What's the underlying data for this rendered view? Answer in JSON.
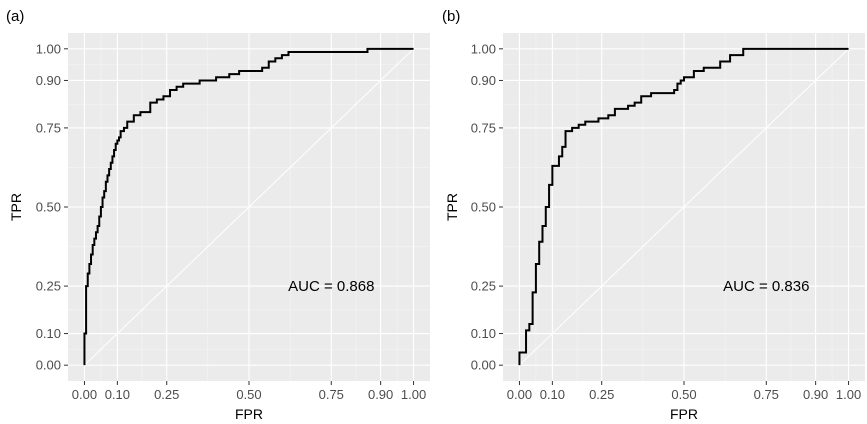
{
  "colors": {
    "panel_bg": "#EBEBEB",
    "grid_major": "#FFFFFF",
    "grid_minor": "#F5F5F5",
    "curve": "#000000",
    "diagonal": "#FFFFFF"
  },
  "chart_data": [
    {
      "type": "line",
      "panel_label": "(a)",
      "xlabel": "FPR",
      "ylabel": "TPR",
      "xlim": [
        0,
        1
      ],
      "ylim": [
        0,
        1
      ],
      "x_ticks": [
        0.0,
        0.1,
        0.25,
        0.5,
        0.75,
        0.9,
        1.0
      ],
      "x_tick_labels": [
        "0.00",
        "0.10",
        "0.25",
        "0.50",
        "0.75",
        "0.90",
        "1.00"
      ],
      "y_ticks": [
        0.0,
        0.1,
        0.25,
        0.5,
        0.75,
        0.9,
        1.0
      ],
      "y_tick_labels": [
        "0.00",
        "0.10",
        "0.25",
        "0.50",
        "0.75",
        "0.90",
        "1.00"
      ],
      "annotation": "AUC = 0.868",
      "grid": true,
      "diagonal_reference": true,
      "series": [
        {
          "x": [
            0.0,
            0.0,
            0.005,
            0.005,
            0.01,
            0.01,
            0.015,
            0.015,
            0.02,
            0.02,
            0.025,
            0.025,
            0.03,
            0.03,
            0.035,
            0.035,
            0.04,
            0.04,
            0.045,
            0.045,
            0.05,
            0.05,
            0.055,
            0.055,
            0.06,
            0.06,
            0.065,
            0.065,
            0.07,
            0.07,
            0.075,
            0.075,
            0.08,
            0.08,
            0.085,
            0.085,
            0.09,
            0.09,
            0.095,
            0.095,
            0.1,
            0.1,
            0.105,
            0.105,
            0.11,
            0.11,
            0.12,
            0.12,
            0.13,
            0.13,
            0.15,
            0.15,
            0.17,
            0.17,
            0.2,
            0.2,
            0.22,
            0.22,
            0.24,
            0.24,
            0.26,
            0.26,
            0.28,
            0.28,
            0.3,
            0.3,
            0.32,
            0.32,
            0.35,
            0.35,
            0.4,
            0.4,
            0.44,
            0.44,
            0.47,
            0.47,
            0.5,
            0.5,
            0.54,
            0.54,
            0.56,
            0.56,
            0.58,
            0.58,
            0.6,
            0.6,
            0.62,
            0.62,
            0.86,
            0.86,
            1.0
          ],
          "y": [
            0.0,
            0.1,
            0.1,
            0.25,
            0.25,
            0.29,
            0.29,
            0.32,
            0.32,
            0.35,
            0.35,
            0.38,
            0.38,
            0.4,
            0.4,
            0.42,
            0.42,
            0.44,
            0.44,
            0.47,
            0.47,
            0.5,
            0.5,
            0.53,
            0.53,
            0.55,
            0.55,
            0.58,
            0.58,
            0.6,
            0.6,
            0.62,
            0.62,
            0.64,
            0.64,
            0.66,
            0.66,
            0.68,
            0.68,
            0.7,
            0.7,
            0.71,
            0.71,
            0.72,
            0.72,
            0.74,
            0.74,
            0.75,
            0.75,
            0.77,
            0.77,
            0.79,
            0.79,
            0.8,
            0.8,
            0.83,
            0.83,
            0.84,
            0.84,
            0.85,
            0.85,
            0.87,
            0.87,
            0.88,
            0.88,
            0.89,
            0.89,
            0.89,
            0.89,
            0.9,
            0.9,
            0.91,
            0.91,
            0.92,
            0.92,
            0.93,
            0.93,
            0.93,
            0.93,
            0.94,
            0.94,
            0.96,
            0.96,
            0.97,
            0.97,
            0.98,
            0.98,
            0.99,
            0.99,
            1.0,
            1.0
          ]
        }
      ]
    },
    {
      "type": "line",
      "panel_label": "(b)",
      "xlabel": "FPR",
      "ylabel": "TPR",
      "xlim": [
        0,
        1
      ],
      "ylim": [
        0,
        1
      ],
      "x_ticks": [
        0.0,
        0.1,
        0.25,
        0.5,
        0.75,
        0.9,
        1.0
      ],
      "x_tick_labels": [
        "0.00",
        "0.10",
        "0.25",
        "0.50",
        "0.75",
        "0.90",
        "1.00"
      ],
      "y_ticks": [
        0.0,
        0.1,
        0.25,
        0.5,
        0.75,
        0.9,
        1.0
      ],
      "y_tick_labels": [
        "0.00",
        "0.10",
        "0.25",
        "0.50",
        "0.75",
        "0.90",
        "1.00"
      ],
      "annotation": "AUC = 0.836",
      "grid": true,
      "diagonal_reference": true,
      "series": [
        {
          "x": [
            0.0,
            0.0,
            0.02,
            0.02,
            0.03,
            0.03,
            0.04,
            0.04,
            0.05,
            0.05,
            0.06,
            0.06,
            0.07,
            0.07,
            0.08,
            0.08,
            0.09,
            0.09,
            0.1,
            0.1,
            0.12,
            0.12,
            0.13,
            0.13,
            0.14,
            0.14,
            0.16,
            0.16,
            0.18,
            0.18,
            0.2,
            0.2,
            0.24,
            0.24,
            0.27,
            0.27,
            0.29,
            0.29,
            0.33,
            0.33,
            0.35,
            0.35,
            0.37,
            0.37,
            0.4,
            0.4,
            0.47,
            0.47,
            0.48,
            0.48,
            0.49,
            0.49,
            0.5,
            0.5,
            0.53,
            0.53,
            0.56,
            0.56,
            0.61,
            0.61,
            0.64,
            0.64,
            0.68,
            0.68,
            1.0
          ],
          "y": [
            0.0,
            0.04,
            0.04,
            0.11,
            0.11,
            0.13,
            0.13,
            0.23,
            0.23,
            0.32,
            0.32,
            0.39,
            0.39,
            0.44,
            0.44,
            0.5,
            0.5,
            0.57,
            0.57,
            0.63,
            0.63,
            0.66,
            0.66,
            0.69,
            0.69,
            0.74,
            0.74,
            0.75,
            0.75,
            0.76,
            0.76,
            0.77,
            0.77,
            0.78,
            0.78,
            0.79,
            0.79,
            0.81,
            0.81,
            0.82,
            0.82,
            0.83,
            0.83,
            0.85,
            0.85,
            0.86,
            0.86,
            0.87,
            0.87,
            0.89,
            0.89,
            0.9,
            0.9,
            0.91,
            0.91,
            0.93,
            0.93,
            0.94,
            0.94,
            0.96,
            0.96,
            0.98,
            0.98,
            1.0,
            1.0
          ]
        }
      ]
    }
  ]
}
